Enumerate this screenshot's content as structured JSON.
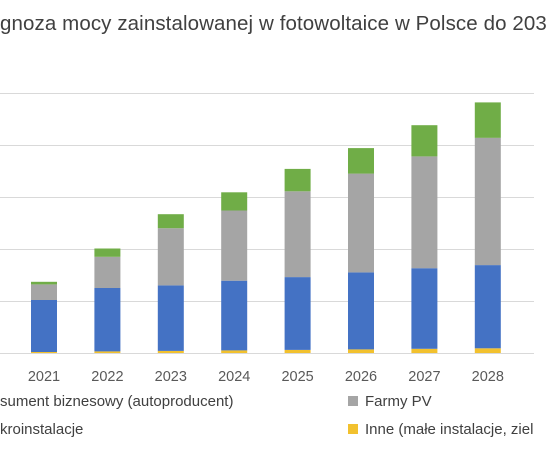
{
  "chart_data": {
    "type": "bar",
    "stacked": true,
    "title": "gnoza mocy zainstalowanej w fotowoltaice w Polsce do 203",
    "categories": [
      "2021",
      "2022",
      "2023",
      "2024",
      "2025",
      "2026",
      "2027",
      "2028"
    ],
    "series": [
      {
        "name": "Inne (małe instalacje, ziel",
        "color": "#f2c12e",
        "values": [
          0.02,
          0.03,
          0.04,
          0.05,
          0.06,
          0.07,
          0.08,
          0.09
        ]
      },
      {
        "name": "sument biznesowy (autoproducent)",
        "color": "#4472c4",
        "values": [
          1.0,
          1.22,
          1.26,
          1.34,
          1.4,
          1.48,
          1.55,
          1.6
        ]
      },
      {
        "name": "Farmy PV",
        "color": "#a5a5a5",
        "values": [
          0.3,
          0.6,
          1.1,
          1.35,
          1.65,
          1.9,
          2.15,
          2.45
        ]
      },
      {
        "name": "kroinstalacje",
        "color": "#70ad47",
        "values": [
          0.05,
          0.16,
          0.27,
          0.35,
          0.43,
          0.49,
          0.6,
          0.68
        ]
      }
    ],
    "ylim": [
      0,
      5
    ],
    "grid": true,
    "legend_position": "bottom"
  }
}
